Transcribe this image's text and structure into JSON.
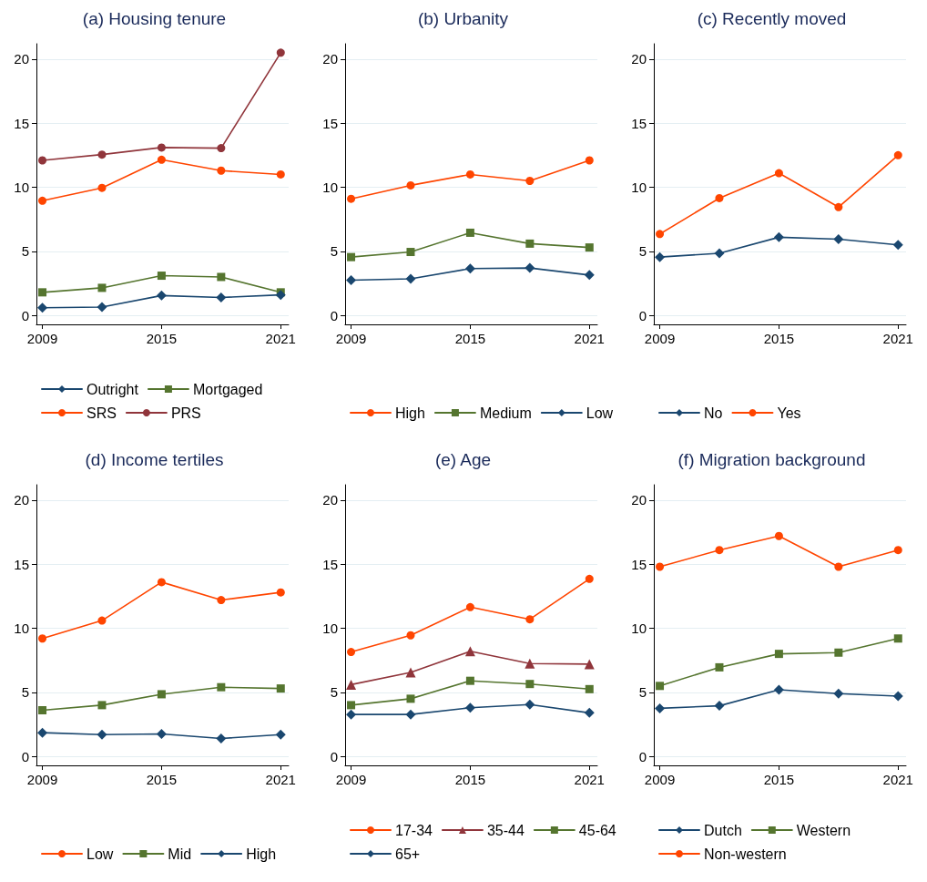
{
  "chart_data": [
    {
      "type": "line",
      "title": "(a) Housing tenure",
      "x": [
        2009,
        2012,
        2015,
        2018,
        2021
      ],
      "xlim": [
        2008.7,
        2021.4
      ],
      "xticks": [
        2009,
        2015,
        2021
      ],
      "ylim": [
        -0.7,
        21.2
      ],
      "yticks": [
        0,
        5,
        10,
        15,
        20
      ],
      "grid": "y",
      "legend": "bottom",
      "series": [
        {
          "name": "Outright",
          "color": "#1a476f",
          "marker": "diamond",
          "values": [
            0.6,
            0.65,
            1.55,
            1.4,
            1.6
          ]
        },
        {
          "name": "Mortgaged",
          "color": "#55752f",
          "marker": "square",
          "values": [
            1.8,
            2.15,
            3.1,
            3.0,
            1.8
          ]
        },
        {
          "name": "SRS",
          "color": "#ff4500",
          "marker": "circle",
          "values": [
            8.95,
            9.95,
            12.15,
            11.3,
            11.0
          ]
        },
        {
          "name": "PRS",
          "color": "#90353b",
          "marker": "circle",
          "values": [
            12.1,
            12.55,
            13.1,
            13.05,
            20.5
          ]
        }
      ]
    },
    {
      "type": "line",
      "title": "(b) Urbanity",
      "x": [
        2009,
        2012,
        2015,
        2018,
        2021
      ],
      "xlim": [
        2008.7,
        2021.4
      ],
      "xticks": [
        2009,
        2015,
        2021
      ],
      "ylim": [
        -0.7,
        21.2
      ],
      "yticks": [
        0,
        5,
        10,
        15,
        20
      ],
      "grid": "y",
      "legend": "bottom",
      "series": [
        {
          "name": "High",
          "color": "#ff4500",
          "marker": "circle",
          "values": [
            9.1,
            10.15,
            11.0,
            10.5,
            12.1
          ]
        },
        {
          "name": "Medium",
          "color": "#55752f",
          "marker": "square",
          "values": [
            4.55,
            4.95,
            6.45,
            5.6,
            5.3
          ]
        },
        {
          "name": "Low",
          "color": "#1a476f",
          "marker": "diamond",
          "values": [
            2.75,
            2.85,
            3.65,
            3.7,
            3.15
          ]
        }
      ]
    },
    {
      "type": "line",
      "title": "(c) Recently moved",
      "x": [
        2009,
        2012,
        2015,
        2018,
        2021
      ],
      "xlim": [
        2008.7,
        2021.4
      ],
      "xticks": [
        2009,
        2015,
        2021
      ],
      "ylim": [
        -0.7,
        21.2
      ],
      "yticks": [
        0,
        5,
        10,
        15,
        20
      ],
      "grid": "y",
      "legend": "bottom",
      "series": [
        {
          "name": "No",
          "color": "#1a476f",
          "marker": "diamond",
          "values": [
            4.55,
            4.85,
            6.1,
            5.95,
            5.5
          ]
        },
        {
          "name": "Yes",
          "color": "#ff4500",
          "marker": "circle",
          "values": [
            6.35,
            9.15,
            11.1,
            8.45,
            12.5
          ]
        }
      ]
    },
    {
      "type": "line",
      "title": "(d) Income tertiles",
      "x": [
        2009,
        2012,
        2015,
        2018,
        2021
      ],
      "xlim": [
        2008.7,
        2021.4
      ],
      "xticks": [
        2009,
        2015,
        2021
      ],
      "ylim": [
        -0.7,
        21.2
      ],
      "yticks": [
        0,
        5,
        10,
        15,
        20
      ],
      "grid": "y",
      "legend": "bottom",
      "series": [
        {
          "name": "Low",
          "color": "#ff4500",
          "marker": "circle",
          "values": [
            9.2,
            10.6,
            13.6,
            12.2,
            12.8
          ]
        },
        {
          "name": "Mid",
          "color": "#55752f",
          "marker": "square",
          "values": [
            3.6,
            4.0,
            4.85,
            5.4,
            5.3
          ]
        },
        {
          "name": "High",
          "color": "#1a476f",
          "marker": "diamond",
          "values": [
            1.85,
            1.7,
            1.75,
            1.4,
            1.7
          ]
        }
      ]
    },
    {
      "type": "line",
      "title": "(e) Age",
      "x": [
        2009,
        2012,
        2015,
        2018,
        2021
      ],
      "xlim": [
        2008.7,
        2021.4
      ],
      "xticks": [
        2009,
        2015,
        2021
      ],
      "ylim": [
        -0.7,
        21.2
      ],
      "yticks": [
        0,
        5,
        10,
        15,
        20
      ],
      "grid": "y",
      "legend": "bottom",
      "series": [
        {
          "name": "17-34",
          "color": "#ff4500",
          "marker": "circle",
          "values": [
            8.15,
            9.45,
            11.65,
            10.7,
            13.85
          ]
        },
        {
          "name": "35-44",
          "color": "#90353b",
          "marker": "triangle",
          "values": [
            5.6,
            6.55,
            8.2,
            7.25,
            7.2
          ]
        },
        {
          "name": "45-64",
          "color": "#55752f",
          "marker": "square",
          "values": [
            4.0,
            4.5,
            5.9,
            5.65,
            5.25
          ]
        },
        {
          "name": "65+",
          "color": "#1a476f",
          "marker": "diamond",
          "values": [
            3.27,
            3.27,
            3.8,
            4.05,
            3.4
          ]
        }
      ]
    },
    {
      "type": "line",
      "title": "(f) Migration background",
      "x": [
        2009,
        2012,
        2015,
        2018,
        2021
      ],
      "xlim": [
        2008.7,
        2021.4
      ],
      "xticks": [
        2009,
        2015,
        2021
      ],
      "ylim": [
        -0.7,
        21.2
      ],
      "yticks": [
        0,
        5,
        10,
        15,
        20
      ],
      "grid": "y",
      "legend": "bottom",
      "series": [
        {
          "name": "Dutch",
          "color": "#1a476f",
          "marker": "diamond",
          "values": [
            3.75,
            3.95,
            5.2,
            4.9,
            4.7
          ]
        },
        {
          "name": "Western",
          "color": "#55752f",
          "marker": "square",
          "values": [
            5.5,
            6.95,
            8.0,
            8.1,
            9.2
          ]
        },
        {
          "name": "Non-western",
          "color": "#ff4500",
          "marker": "circle",
          "values": [
            14.8,
            16.1,
            17.2,
            14.8,
            16.1
          ]
        }
      ]
    }
  ]
}
